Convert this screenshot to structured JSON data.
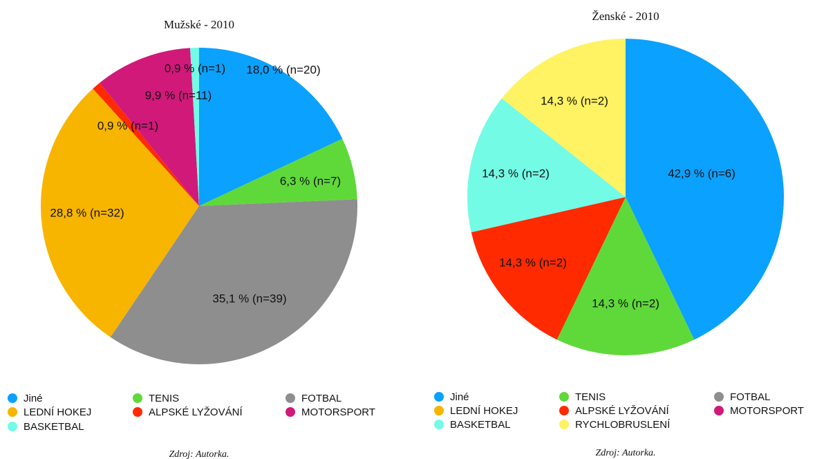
{
  "chart_data": [
    {
      "type": "pie",
      "title": "Mužské - 2010",
      "categories": [
        "Jiné",
        "TENIS",
        "FOTBAL",
        "LEDNÍ HOKEJ",
        "ALPSKÉ LYŽOVÁNÍ",
        "MOTORSPORT",
        "BASKETBAL"
      ],
      "values": [
        18.0,
        6.3,
        35.1,
        28.8,
        0.9,
        9.9,
        0.9
      ],
      "value_labels": [
        "18,0 % (n=20)",
        "6,3 % (n=7)",
        "35,1 % (n=39)",
        "28,8 % (n=32)",
        "0,9 % (n=1)",
        "9,9 % (n=11)",
        "0,9 % (n=1)"
      ],
      "colors": [
        "#0aa1ff",
        "#5fd93a",
        "#8e8e8e",
        "#f7b500",
        "#ff2a00",
        "#d1197a",
        "#73fbe6"
      ],
      "source": "Zdroj: Autorka."
    },
    {
      "type": "pie",
      "title": "Ženské - 2010",
      "categories": [
        "Jiné",
        "TENIS",
        "ALPSKÉ LYŽOVÁNÍ",
        "BASKETBAL",
        "RYCHLOBRUSLENÍ",
        "FOTBAL",
        "LEDNÍ HOKEJ",
        "MOTORSPORT"
      ],
      "values": [
        42.9,
        14.3,
        14.3,
        14.3,
        14.3,
        0,
        0,
        0
      ],
      "value_labels": [
        "42,9 % (n=6)",
        "14,3 % (n=2)",
        "14,3 % (n=2)",
        "14,3 % (n=2)",
        "14,3 % (n=2)",
        null,
        null,
        null
      ],
      "colors": [
        "#0aa1ff",
        "#5fd93a",
        "#ff2a00",
        "#73fbe6",
        "#fff263",
        "#8e8e8e",
        "#f7b500",
        "#d1197a"
      ],
      "source": "Zdroj: Autorka."
    }
  ]
}
